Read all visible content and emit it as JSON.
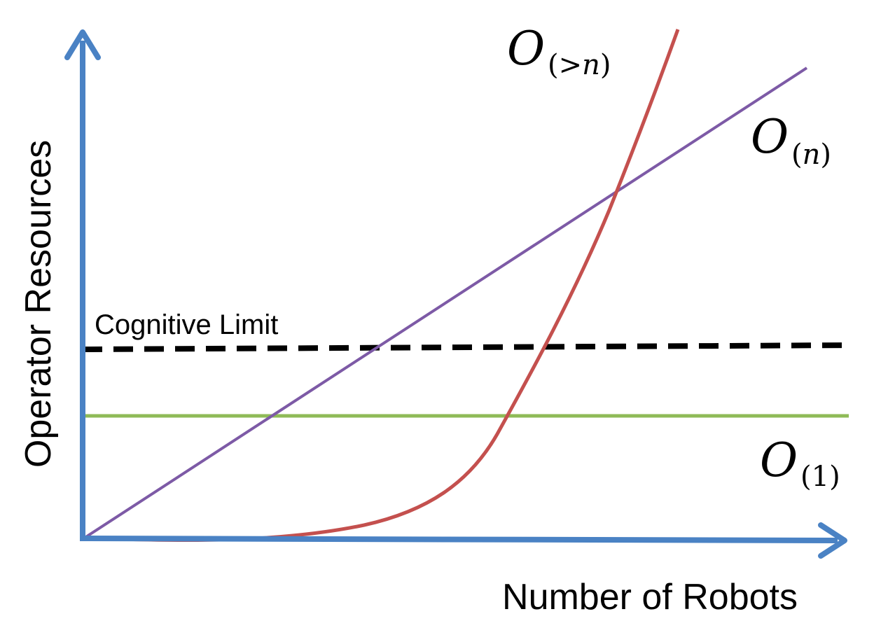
{
  "axes": {
    "x_label": "Number of Robots",
    "y_label": "Operator Resources",
    "color": "#4a82c4"
  },
  "cognitive_limit": {
    "label": "Cognitive Limit",
    "color": "#000000"
  },
  "curves": [
    {
      "id": "constant",
      "base": "O",
      "sub_open": "(",
      "sub_var": "",
      "sub_num": "1",
      "sub_close": ")",
      "color": "#8fbb57"
    },
    {
      "id": "linear",
      "base": "O",
      "sub_open": "(",
      "sub_var": "n",
      "sub_num": "",
      "sub_close": ")",
      "color": "#7d5aa6"
    },
    {
      "id": "superlinear",
      "base": "O",
      "sub_open": "(",
      "sub_var": "n",
      "sub_num": ">",
      "sub_close": ")",
      "color": "#c4504e"
    }
  ]
}
